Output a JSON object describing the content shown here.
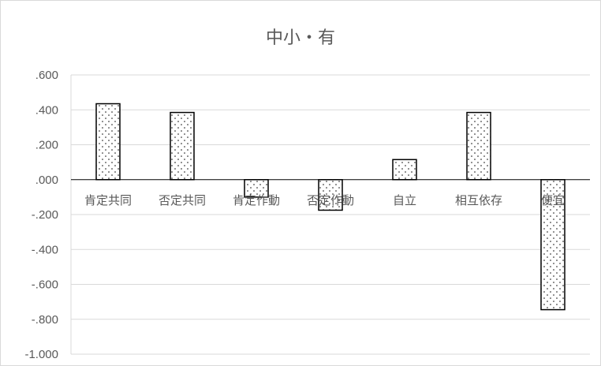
{
  "chart_data": {
    "type": "bar",
    "title": "中小・有",
    "xlabel": "",
    "ylabel": "",
    "categories": [
      "肯定共同",
      "否定共同",
      "肯定作動",
      "否定作動",
      "自立",
      "相互依存",
      "便宜"
    ],
    "values": [
      0.435,
      0.385,
      -0.1,
      -0.175,
      0.115,
      0.385,
      -0.745
    ],
    "ylim": [
      -1.0,
      0.6
    ],
    "yticks": [
      ".600",
      ".400",
      ".200",
      ".000",
      "-.200",
      "-.400",
      "-.600",
      "-.800",
      "-1.000"
    ],
    "grid": true,
    "legend": "none",
    "bar_fill": "#ffffff",
    "bar_stroke": "#000000",
    "bar_pattern": "dotted",
    "grid_color": "#d9d9d9",
    "text_color": "#595959"
  }
}
